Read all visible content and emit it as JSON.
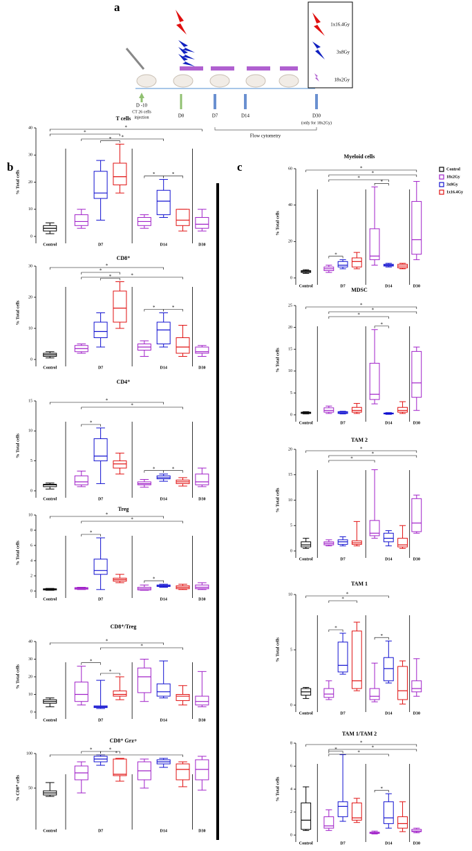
{
  "figure": {
    "panel_labels": [
      "a",
      "b",
      "c"
    ],
    "schematic": {
      "days": [
        "D -10",
        "D0",
        "D7",
        "D14",
        "D30"
      ],
      "injection": [
        "CT 26 cells",
        "injection"
      ],
      "note": "(only for 18x2Gy)",
      "flow": "Flow cytometry",
      "doses": [
        "1x16.4Gy",
        "3x8Gy",
        "18x2Gy"
      ]
    },
    "sig": "*",
    "groups": [
      "Control",
      "D7",
      "D14",
      "D30"
    ],
    "legend": [
      {
        "name": "Control",
        "color": "#000000"
      },
      {
        "name": "18x2Gy",
        "color": "#a020c8"
      },
      {
        "name": "3x8Gy",
        "color": "#1010d0"
      },
      {
        "name": "1x16.4Gy",
        "color": "#e01010"
      }
    ]
  },
  "chart_data": [
    {
      "type": "box",
      "title": "T cells",
      "ylabel": "% Total cells",
      "ylim": [
        0,
        40
      ],
      "yticks": [
        0,
        10,
        20,
        30,
        40
      ],
      "boxes": [
        [
          1,
          2,
          3,
          4,
          5
        ],
        [
          3,
          4,
          5.5,
          8,
          10
        ],
        [
          6,
          14,
          16,
          24,
          28
        ],
        [
          16,
          19,
          22,
          27,
          34
        ],
        [
          3,
          4,
          5.5,
          7,
          8
        ],
        [
          7,
          8,
          13,
          17,
          21
        ],
        [
          2,
          4,
          6,
          10,
          10
        ],
        [
          2,
          3,
          4.5,
          7,
          10
        ]
      ],
      "brackets": [
        [
          0,
          7
        ],
        [
          0,
          3
        ],
        [
          1,
          5
        ],
        [
          2,
          3
        ],
        [
          4,
          5
        ],
        [
          5,
          6
        ]
      ]
    },
    {
      "type": "box",
      "title": "CD8⁺",
      "ylabel": "% Total cells",
      "ylim": [
        0,
        30
      ],
      "yticks": [
        0,
        10,
        20,
        30
      ],
      "boxes": [
        [
          0.5,
          1,
          1.5,
          2,
          2.5
        ],
        [
          2,
          2.5,
          3.5,
          4.5,
          5
        ],
        [
          4,
          7,
          9,
          12,
          15
        ],
        [
          10,
          12,
          16.5,
          22,
          25
        ],
        [
          1,
          3,
          4,
          5,
          6
        ],
        [
          4,
          5,
          9.5,
          12,
          15
        ],
        [
          1,
          2,
          4,
          7,
          11
        ],
        [
          1,
          2,
          2.5,
          4,
          4.5
        ]
      ],
      "brackets": [
        [
          0,
          5
        ],
        [
          1,
          3
        ],
        [
          1,
          6
        ],
        [
          2,
          3
        ],
        [
          4,
          5
        ],
        [
          5,
          6
        ]
      ]
    },
    {
      "type": "box",
      "title": "CD4⁺",
      "ylabel": "% Total cells",
      "ylim": [
        0,
        15
      ],
      "yticks": [
        0,
        5,
        10,
        15
      ],
      "boxes": [
        [
          0.3,
          0.7,
          1,
          1.1,
          1.3
        ],
        [
          0.7,
          1,
          1.5,
          2.5,
          3.3
        ],
        [
          1.2,
          5,
          5.8,
          8.7,
          10.5
        ],
        [
          2.8,
          3.8,
          4.5,
          5,
          6.3
        ],
        [
          0.6,
          1,
          1.2,
          1.5,
          1.9
        ],
        [
          1.6,
          2,
          2.2,
          2.5,
          2.8
        ],
        [
          0.8,
          1.2,
          1.5,
          1.8,
          2.2
        ],
        [
          0.7,
          1,
          1.5,
          2.8,
          3.8
        ]
      ],
      "brackets": [
        [
          0,
          5
        ],
        [
          1,
          6
        ],
        [
          1,
          2
        ],
        [
          4,
          5
        ],
        [
          5,
          6
        ]
      ]
    },
    {
      "type": "box",
      "title": "Treg",
      "ylabel": "% Total cells",
      "ylim": [
        0,
        10
      ],
      "yticks": [
        0,
        2,
        4,
        6,
        8,
        10
      ],
      "boxes": [
        [
          0.1,
          0.15,
          0.25,
          0.3,
          0.35
        ],
        [
          0.2,
          0.25,
          0.35,
          0.45,
          0.5
        ],
        [
          0.2,
          2.2,
          2.7,
          4.2,
          7
        ],
        [
          1.1,
          1.3,
          1.5,
          1.7,
          2.2
        ],
        [
          0.1,
          0.15,
          0.3,
          0.5,
          0.8
        ],
        [
          0.5,
          0.6,
          0.7,
          0.8,
          0.9
        ],
        [
          0.2,
          0.3,
          0.5,
          0.7,
          0.9
        ],
        [
          0.2,
          0.3,
          0.5,
          0.8,
          1.1
        ]
      ],
      "brackets": [
        [
          0,
          5
        ],
        [
          1,
          6
        ],
        [
          1,
          2
        ],
        [
          4,
          5
        ]
      ]
    },
    {
      "type": "box",
      "title": "CD8⁺/Treg",
      "ylabel": "% Total cells",
      "ylim": [
        0,
        40
      ],
      "yticks": [
        0,
        10,
        20,
        30,
        40
      ],
      "boxes": [
        [
          3,
          5,
          6,
          7,
          8
        ],
        [
          4,
          6,
          10,
          17,
          26
        ],
        [
          2,
          2.5,
          3,
          3.5,
          18
        ],
        [
          7,
          9,
          10,
          12,
          20
        ],
        [
          6,
          11,
          20,
          25,
          30
        ],
        [
          8,
          9,
          11.5,
          16,
          29
        ],
        [
          4,
          6.5,
          9,
          10,
          15
        ],
        [
          3,
          4,
          6,
          9,
          23
        ]
      ],
      "brackets": [
        [
          0,
          5
        ],
        [
          2,
          6
        ],
        [
          1,
          2
        ],
        [
          2,
          3
        ]
      ]
    },
    {
      "type": "box",
      "title": "CD8⁺ Grz+",
      "ylabel": "% CD8⁺ cells",
      "ylim": [
        0,
        100
      ],
      "yticks": [
        50,
        100
      ],
      "boxes": [
        [
          38,
          40,
          43,
          46,
          58
        ],
        [
          43,
          62,
          72,
          82,
          88
        ],
        [
          83,
          88,
          92,
          96,
          98
        ],
        [
          60,
          68,
          70,
          92,
          93
        ],
        [
          50,
          62,
          75,
          88,
          92
        ],
        [
          80,
          85,
          88,
          91,
          93
        ],
        [
          52,
          62,
          77,
          85,
          88
        ],
        [
          47,
          62,
          77,
          91,
          96
        ]
      ],
      "brackets": [
        [
          0,
          6
        ],
        [
          1,
          2
        ],
        [
          2,
          3
        ]
      ]
    },
    {
      "type": "box",
      "title": "Myeloid cells",
      "ylabel": "% Total cells",
      "ylim": [
        0,
        60
      ],
      "yticks": [
        0,
        20,
        40,
        60
      ],
      "boxes": [
        [
          2.5,
          3,
          3.5,
          4,
          4.5
        ],
        [
          3,
          4,
          5,
          6,
          7
        ],
        [
          5,
          6,
          7,
          9,
          10
        ],
        [
          5,
          6,
          9,
          11,
          14
        ],
        [
          7,
          10,
          12,
          27,
          50
        ],
        [
          6,
          6.5,
          7,
          7.5,
          8
        ],
        [
          5,
          5.5,
          6.5,
          7.5,
          8
        ],
        [
          10,
          13,
          21,
          42,
          53
        ]
      ],
      "brackets": [
        [
          0,
          7
        ],
        [
          1,
          7
        ],
        [
          1,
          5
        ],
        [
          1,
          2
        ],
        [
          4,
          5
        ]
      ]
    },
    {
      "type": "box",
      "title": "MDSC",
      "ylabel": "% Total cells",
      "ylim": [
        0,
        25
      ],
      "yticks": [
        0,
        5,
        10,
        15,
        20,
        25
      ],
      "boxes": [
        [
          0.2,
          0.3,
          0.5,
          0.6,
          0.7
        ],
        [
          0.3,
          0.6,
          1,
          1.6,
          2
        ],
        [
          0.2,
          0.3,
          0.5,
          0.7,
          0.8
        ],
        [
          0.3,
          0.6,
          1,
          1.7,
          2.6
        ],
        [
          2.5,
          3.5,
          4.7,
          11.8,
          19.5
        ],
        [
          0.1,
          0.2,
          0.3,
          0.4,
          0.5
        ],
        [
          0.3,
          0.6,
          1,
          1.7,
          3
        ],
        [
          1,
          4,
          7.3,
          14.5,
          15.5
        ]
      ],
      "brackets": [
        [
          0,
          7
        ],
        [
          1,
          7
        ],
        [
          1,
          5
        ],
        [
          4,
          5
        ]
      ]
    },
    {
      "type": "box",
      "title": "TAM 2",
      "ylabel": "% Total cells",
      "ylim": [
        0,
        20
      ],
      "yticks": [
        0,
        5,
        10,
        15,
        20
      ],
      "boxes": [
        [
          0.5,
          0.8,
          1.2,
          1.8,
          2.5
        ],
        [
          1,
          1.2,
          1.5,
          1.8,
          2.2
        ],
        [
          1,
          1.3,
          1.8,
          2.2,
          2.8
        ],
        [
          1,
          1.3,
          1.6,
          2,
          5.8
        ],
        [
          2.5,
          3,
          3.5,
          6,
          16
        ],
        [
          1,
          1.8,
          2.5,
          3.5,
          4
        ],
        [
          0.5,
          0.8,
          1.2,
          2.5,
          5
        ],
        [
          3.5,
          3.8,
          5.5,
          10.3,
          11
        ]
      ],
      "brackets": [
        [
          0,
          7
        ],
        [
          1,
          7
        ],
        [
          1,
          4
        ]
      ]
    },
    {
      "type": "box",
      "title": "TAM 1",
      "ylabel": "% Total cells",
      "ylim": [
        0,
        10
      ],
      "yticks": [
        0,
        5,
        10
      ],
      "boxes": [
        [
          0.6,
          0.9,
          1.2,
          1.5,
          1.6
        ],
        [
          0.5,
          0.7,
          1,
          1.5,
          2.2
        ],
        [
          2.8,
          3,
          3.6,
          5.7,
          6.5
        ],
        [
          1.3,
          1.5,
          2.2,
          6.7,
          7.5
        ],
        [
          0.3,
          0.5,
          0.8,
          1.5,
          3.8
        ],
        [
          2,
          2.2,
          3.3,
          4.3,
          5.8
        ],
        [
          0.1,
          0.5,
          1.3,
          3.5,
          4
        ],
        [
          0.8,
          1.2,
          1.5,
          2.2,
          4.2
        ]
      ],
      "brackets": [
        [
          0,
          5
        ],
        [
          1,
          3
        ],
        [
          1,
          2
        ],
        [
          4,
          5
        ]
      ]
    },
    {
      "type": "box",
      "title": "TAM 1/TAM 2",
      "ylabel": "% Total cells",
      "ylim": [
        0,
        8
      ],
      "yticks": [
        0,
        2,
        4,
        6,
        8
      ],
      "boxes": [
        [
          0.4,
          0.5,
          1.3,
          2.8,
          4.2
        ],
        [
          0.4,
          0.6,
          0.8,
          1.6,
          2.2
        ],
        [
          1.2,
          1.6,
          2.5,
          2.9,
          7
        ],
        [
          1.1,
          1.3,
          1.5,
          2.8,
          3.2
        ],
        [
          0.1,
          0.15,
          0.2,
          0.25,
          0.35
        ],
        [
          0.6,
          1,
          1.5,
          2.9,
          3.6
        ],
        [
          0.3,
          0.6,
          1,
          1.6,
          2.9
        ],
        [
          0.2,
          0.3,
          0.35,
          0.5,
          0.6
        ]
      ],
      "brackets": [
        [
          0,
          7
        ],
        [
          1,
          7
        ],
        [
          1,
          5
        ],
        [
          1,
          2
        ],
        [
          4,
          5
        ]
      ]
    }
  ]
}
